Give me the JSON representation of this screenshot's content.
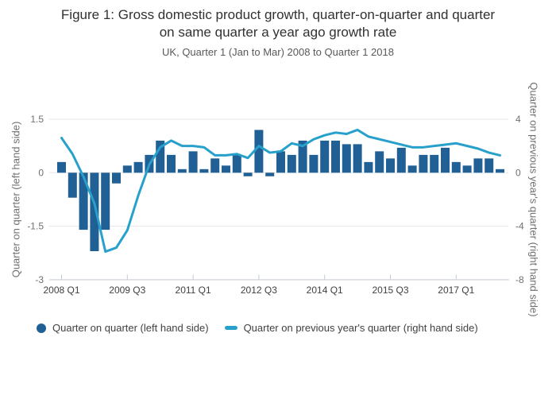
{
  "title": {
    "line1": "Figure 1: Gross domestic product growth, quarter-on-quarter and quarter",
    "line2": "on same quarter a year ago growth rate"
  },
  "subtitle": "UK, Quarter 1 (Jan to Mar) 2008 to Quarter 1 2018",
  "axes": {
    "left_title": "Quarter on quarter (left hand side)",
    "right_title": "Quarter on previous year's quarter (right hand side)",
    "left_ticks": [
      {
        "label": "1.5",
        "value": 1.5
      },
      {
        "label": "0",
        "value": 0
      },
      {
        "label": "-1.5",
        "value": -1.5
      },
      {
        "label": "-3",
        "value": -3
      }
    ],
    "right_ticks": [
      {
        "label": "4",
        "value": 4
      },
      {
        "label": "0",
        "value": 0
      },
      {
        "label": "-4",
        "value": -4
      },
      {
        "label": "-8",
        "value": -8
      }
    ],
    "x_ticks": [
      {
        "index": 0,
        "label": "2008 Q1"
      },
      {
        "index": 6,
        "label": "2009 Q3"
      },
      {
        "index": 12,
        "label": "2011 Q1"
      },
      {
        "index": 18,
        "label": "2012 Q3"
      },
      {
        "index": 24,
        "label": "2014 Q1"
      },
      {
        "index": 30,
        "label": "2015 Q3"
      },
      {
        "index": 36,
        "label": "2017 Q1"
      }
    ]
  },
  "legend": [
    {
      "label": "Quarter on quarter (left hand side)",
      "marker": "circle",
      "color": "#206095"
    },
    {
      "label": "Quarter on previous year's quarter (right hand side)",
      "marker": "line",
      "color": "#27a0cc"
    }
  ],
  "colors": {
    "bar": "#206095",
    "line": "#27a0cc",
    "grid": "#e6e6e6",
    "axis_line": "#c3ccd6",
    "y_tick_label": "#707071",
    "x_tick_label": "#414042",
    "title": "#323132",
    "subtitle": "#595959",
    "legend_text": "#414042"
  },
  "chart_data": {
    "type": "bar",
    "title": "Figure 1: Gross domestic product growth, quarter-on-quarter and quarter on same quarter a year ago growth rate",
    "subtitle": "UK, Quarter 1 (Jan to Mar) 2008 to Quarter 1 2018",
    "categories": [
      "2008 Q1",
      "2008 Q2",
      "2008 Q3",
      "2008 Q4",
      "2009 Q1",
      "2009 Q2",
      "2009 Q3",
      "2009 Q4",
      "2010 Q1",
      "2010 Q2",
      "2010 Q3",
      "2010 Q4",
      "2011 Q1",
      "2011 Q2",
      "2011 Q3",
      "2011 Q4",
      "2012 Q1",
      "2012 Q2",
      "2012 Q3",
      "2012 Q4",
      "2013 Q1",
      "2013 Q2",
      "2013 Q3",
      "2013 Q4",
      "2014 Q1",
      "2014 Q2",
      "2014 Q3",
      "2014 Q4",
      "2015 Q1",
      "2015 Q2",
      "2015 Q3",
      "2015 Q4",
      "2016 Q1",
      "2016 Q2",
      "2016 Q3",
      "2016 Q4",
      "2017 Q1",
      "2017 Q2",
      "2017 Q3",
      "2017 Q4",
      "2018 Q1"
    ],
    "series": [
      {
        "name": "Quarter on quarter (left hand side)",
        "type": "bar",
        "axis": "left",
        "values": [
          0.3,
          -0.7,
          -1.6,
          -2.2,
          -1.6,
          -0.3,
          0.2,
          0.3,
          0.5,
          0.9,
          0.5,
          0.1,
          0.6,
          0.1,
          0.4,
          0.2,
          0.5,
          -0.1,
          1.2,
          -0.1,
          0.6,
          0.5,
          0.9,
          0.5,
          0.9,
          0.9,
          0.8,
          0.8,
          0.3,
          0.6,
          0.4,
          0.7,
          0.2,
          0.5,
          0.5,
          0.7,
          0.3,
          0.2,
          0.4,
          0.4,
          0.1
        ]
      },
      {
        "name": "Quarter on previous year's quarter (right hand side)",
        "type": "line",
        "axis": "right",
        "values": [
          2.6,
          1.4,
          -0.3,
          -2.3,
          -5.9,
          -5.6,
          -4.3,
          -1.7,
          0.6,
          1.9,
          2.4,
          2.0,
          2.0,
          1.9,
          1.3,
          1.3,
          1.4,
          1.1,
          2.0,
          1.5,
          1.6,
          2.2,
          2.0,
          2.5,
          2.8,
          3.0,
          2.9,
          3.2,
          2.7,
          2.5,
          2.3,
          2.1,
          1.9,
          1.9,
          2.0,
          2.1,
          2.2,
          2.0,
          1.8,
          1.5,
          1.3
        ]
      }
    ],
    "left_ylim": [
      -3,
      1.5
    ],
    "right_ylim": [
      -8,
      4
    ],
    "xlabel": "",
    "ylabel_left": "Quarter on quarter (left hand side)",
    "ylabel_right": "Quarter on previous year's quarter (right hand side)",
    "grid": true,
    "legend_position": "bottom"
  }
}
